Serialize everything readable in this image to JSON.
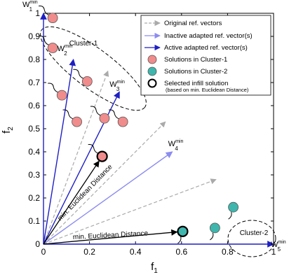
{
  "chart_data": {
    "type": "scatter",
    "xlabel": "f",
    "xlabel_sub": "1",
    "ylabel": "f",
    "ylabel_sub": "2",
    "xlim": [
      0,
      1
    ],
    "ylim": [
      0,
      1
    ],
    "xticks": [
      "0",
      "0.2",
      "0.4",
      "0.6",
      "0.8",
      "1"
    ],
    "yticks": [
      "0",
      "0.1",
      "0.2",
      "0.3",
      "0.4",
      "0.5",
      "0.6",
      "0.7",
      "0.8",
      "0.9",
      "1"
    ],
    "grid": false,
    "legend": {
      "placement": "top-right",
      "entries": [
        {
          "label": "Original ref. vectors",
          "style": "dashed-arrow",
          "color": "#aaaaaa"
        },
        {
          "label": "Inactive adapted ref. vector(s)",
          "style": "arrow",
          "color": "#8c8cf0"
        },
        {
          "label": "Active adapted ref. vector(s)",
          "style": "arrow",
          "color": "#1f1fc4"
        },
        {
          "label": "Solutions in Cluster-1",
          "style": "circle",
          "color": "#f08c8c"
        },
        {
          "label": "Solutions in Cluster-2",
          "style": "circle",
          "color": "#3fb6ad"
        },
        {
          "label": "Selected infill solution",
          "sublabel": "(based on min. Euclidean Distance)",
          "style": "circle-open",
          "color": "#000000"
        }
      ]
    },
    "original_vectors": [
      {
        "to": [
          0.28,
          0.75
        ]
      },
      {
        "to": [
          0.53,
          0.53
        ]
      },
      {
        "to": [
          0.75,
          0.28
        ]
      }
    ],
    "adapted_vectors": [
      {
        "label": "W",
        "sup": "min",
        "sub": "1",
        "to": [
          0.0,
          1.0
        ],
        "status": "active"
      },
      {
        "label": "W",
        "sup": "min",
        "sub": "2",
        "to": [
          0.13,
          0.8
        ],
        "status": "active"
      },
      {
        "label": "W",
        "sup": "min",
        "sub": "3",
        "to": [
          0.33,
          0.66
        ],
        "status": "active"
      },
      {
        "label": "W",
        "sup": "min",
        "sub": "4",
        "to": [
          0.56,
          0.4
        ],
        "status": "inactive"
      },
      {
        "label": "W",
        "sup": "min",
        "sub": "5",
        "to": [
          1.0,
          0.0
        ],
        "status": "active"
      }
    ],
    "cluster1_solutions": [
      {
        "x": 0.04,
        "y": 0.98
      },
      {
        "x": 0.04,
        "y": 0.85
      },
      {
        "x": 0.08,
        "y": 0.645
      },
      {
        "x": 0.145,
        "y": 0.53
      },
      {
        "x": 0.19,
        "y": 0.705
      },
      {
        "x": 0.265,
        "y": 0.545
      },
      {
        "x": 0.345,
        "y": 0.53
      },
      {
        "x": 0.255,
        "y": 0.38,
        "selected": true
      }
    ],
    "cluster2_solutions": [
      {
        "x": 0.605,
        "y": 0.055,
        "selected": true
      },
      {
        "x": 0.745,
        "y": 0.07
      },
      {
        "x": 0.825,
        "y": 0.16
      }
    ],
    "clusters": [
      {
        "label": "Cluster-1"
      },
      {
        "label": "Cluster-2"
      }
    ],
    "distance_annotations": [
      {
        "label": "min. Euclidean Distance",
        "target": 1
      },
      {
        "label": "min. Euclidean Distance",
        "target": 0
      }
    ]
  }
}
